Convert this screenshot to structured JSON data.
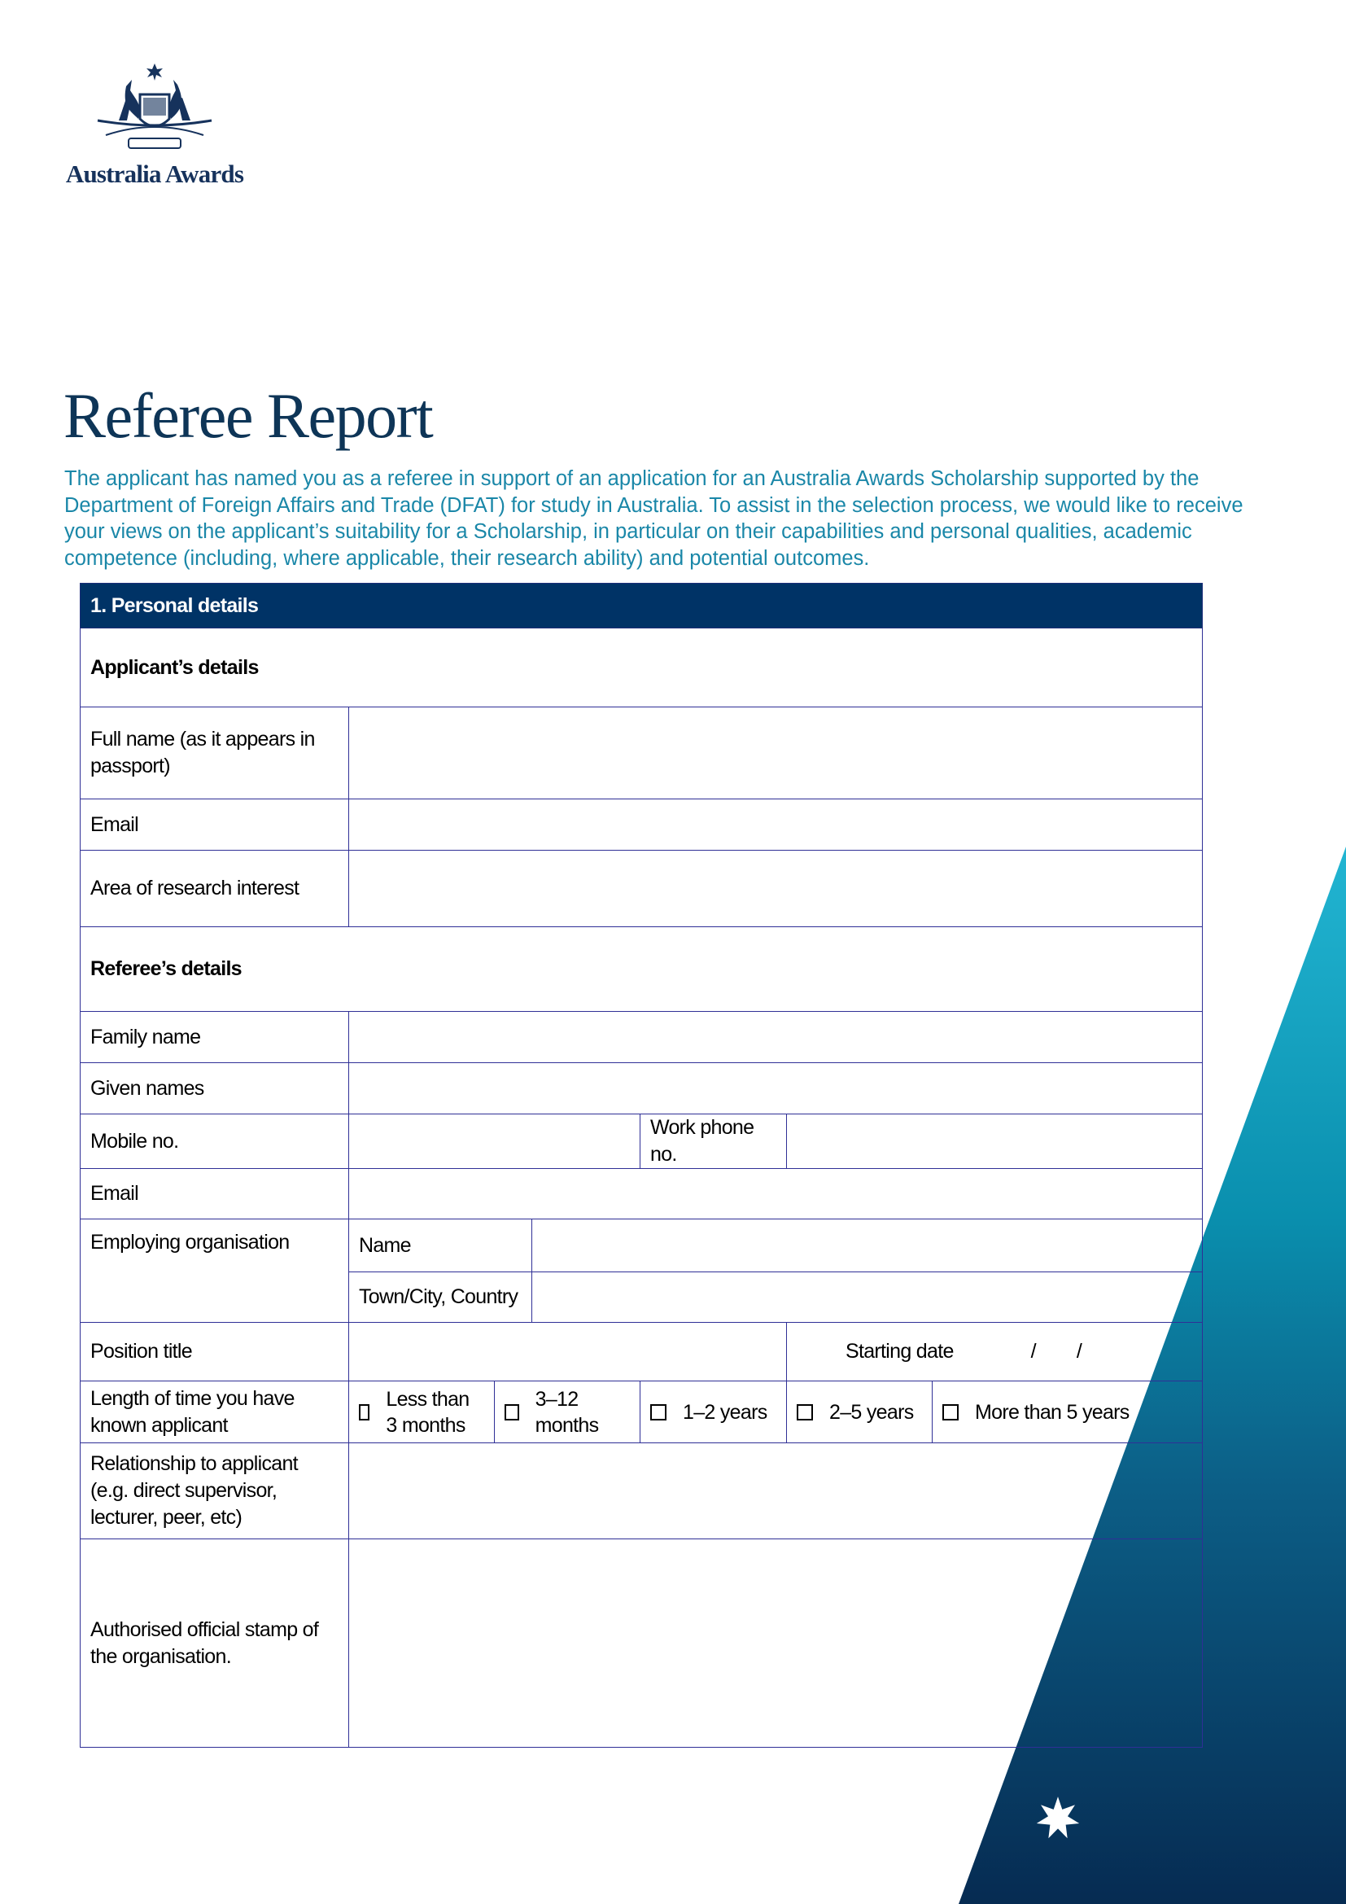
{
  "brand": {
    "name": "Australia Awards",
    "crest_text": "AUSTRALIA"
  },
  "title": "Referee Report",
  "intro": "The applicant has named you as a referee in support of an application for an Australia Awards Scholarship supported by the Department of Foreign Affairs and Trade (DFAT) for study in Australia. To assist in the selection process, we would like to receive your views on the applicant’s suitability for a Scholarship, in particular on their capabilities and personal qualities, academic competence (including, where applicable, their research ability) and potential outcomes.",
  "form": {
    "section_title": "1.  Personal details",
    "applicant_heading": "Applicant’s details",
    "full_name": "Full name (as it appears in passport)",
    "email": "Email",
    "research": "Area of research interest",
    "referee_heading": "Referee’s details",
    "family_name": "Family name",
    "given_names": "Given names",
    "mobile": "Mobile no.",
    "work_phone": "Work phone no.",
    "ref_email": "Email",
    "employing": "Employing organisation",
    "org_name": "Name",
    "org_town": "Town/City, Country",
    "position": "Position title",
    "starting_date": "Starting date",
    "date_sep": "/        /",
    "length": "Length of time you have known applicant",
    "options": [
      "Less than 3 months",
      "3–12 months",
      "1–2 years",
      "2–5 years",
      "More than 5 years"
    ],
    "relationship": "Relationship to applicant (e.g. direct supervisor, lecturer, peer, etc)",
    "stamp": "Authorised official stamp of the organisation."
  },
  "colors": {
    "header_bg": "#003366",
    "border": "#2f2f96",
    "title": "#0e3557",
    "intro": "#1a87a8",
    "triangle_top": "#22b5d2",
    "triangle_bottom": "#062b52"
  }
}
